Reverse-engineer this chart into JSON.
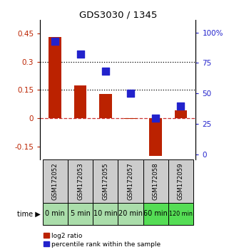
{
  "title": "GDS3030 / 1345",
  "samples": [
    "GSM172052",
    "GSM172053",
    "GSM172055",
    "GSM172057",
    "GSM172058",
    "GSM172059"
  ],
  "time_labels": [
    "0 min",
    "5 min",
    "10 min",
    "20 min",
    "60 min",
    "120 min"
  ],
  "log2_ratio": [
    0.43,
    0.175,
    0.13,
    -0.005,
    -0.2,
    0.04
  ],
  "percentile_rank": [
    93,
    82,
    68,
    50,
    30,
    40
  ],
  "ylim_left": [
    -0.22,
    0.52
  ],
  "ylim_right": [
    -4,
    110
  ],
  "yticks_left": [
    -0.15,
    0,
    0.15,
    0.3,
    0.45
  ],
  "yticks_right": [
    0,
    25,
    50,
    75,
    100
  ],
  "hlines": [
    0.15,
    0.3
  ],
  "bar_color": "#bb2200",
  "dot_color": "#2222cc",
  "zero_line_color": "#cc3333",
  "hline_color": "#000000",
  "sample_bg": "#cccccc",
  "time_bg_light": "#aaddaa",
  "time_bg_dark": "#55dd55",
  "legend_labels": [
    "log2 ratio",
    "percentile rank within the sample"
  ],
  "bar_width": 0.5,
  "dot_size": 45
}
